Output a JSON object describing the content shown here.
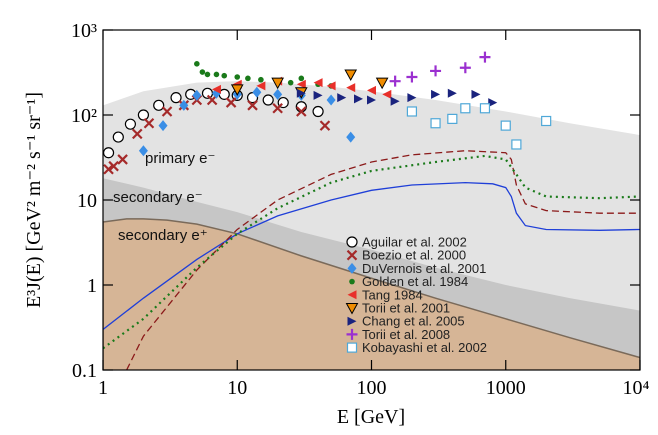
{
  "chart_data": {
    "type": "line",
    "x_label": "E  [GeV]",
    "y_label": "E³J(E)  [GeV² m⁻² s⁻¹ sr⁻¹]",
    "xlim": [
      1,
      10000
    ],
    "ylim": [
      0.1,
      1000
    ],
    "log_x": true,
    "log_y": true,
    "xticks": [
      1,
      10,
      100,
      1000,
      {
        "value": 10000,
        "label": "10⁴"
      }
    ],
    "yticks": [
      0.1,
      1,
      10,
      {
        "value": 100,
        "label": "10²"
      },
      {
        "value": 1000,
        "label": "10³"
      }
    ],
    "legend": "lower-center",
    "areas": [
      {
        "name": "primary e⁻",
        "color": "#e3e3e3",
        "x": [
          1,
          2,
          5,
          10,
          20,
          50,
          100,
          300,
          1000,
          3000,
          10000
        ],
        "values": [
          130,
          190,
          240,
          250,
          240,
          215,
          190,
          150,
          110,
          80,
          58
        ]
      },
      {
        "name": "secondary e⁻",
        "color": "#c6c6c6",
        "x": [
          1,
          2,
          5,
          10,
          30,
          100,
          300,
          1000,
          3000,
          10000
        ],
        "values": [
          18,
          14,
          9.5,
          7.2,
          4.2,
          2.6,
          1.6,
          1.0,
          0.7,
          0.5
        ]
      },
      {
        "name": "secondary e⁺",
        "color": "#d6b596",
        "x": [
          1,
          1.5,
          2,
          3,
          5,
          10,
          30,
          100,
          300,
          1000,
          3000,
          10000
        ],
        "values": [
          5.5,
          6,
          6,
          5.8,
          5.2,
          4,
          2.2,
          1.2,
          0.7,
          0.4,
          0.24,
          0.14
        ]
      }
    ],
    "lines": [
      {
        "color": "#1f3fd8",
        "dash": "none",
        "x": [
          1,
          2,
          5,
          10,
          20,
          50,
          100,
          200,
          500,
          800,
          1000,
          1100,
          1200,
          1400,
          2000,
          5000,
          10000
        ],
        "values": [
          0.3,
          0.7,
          2,
          4,
          6.5,
          10,
          13,
          15,
          16,
          15.5,
          14,
          11,
          7,
          5,
          4.5,
          4.4,
          4.5
        ]
      },
      {
        "color": "#8b1a1a",
        "dash": "7 4",
        "x": [
          1.5,
          2,
          5,
          10,
          20,
          50,
          100,
          200,
          500,
          1000,
          1100,
          1200,
          1400,
          2000,
          5000,
          10000
        ],
        "values": [
          0.1,
          0.25,
          1.5,
          4.5,
          10,
          20,
          28,
          34,
          38,
          36,
          30,
          15,
          9,
          7.5,
          7,
          7
        ]
      },
      {
        "color": "#1a7a1a",
        "dash": "2 4",
        "x": [
          1,
          2,
          5,
          10,
          20,
          50,
          100,
          300,
          700,
          1000,
          1200,
          1400,
          2000,
          5000,
          10000
        ],
        "values": [
          0.18,
          0.4,
          1.6,
          4,
          8,
          16,
          22,
          28,
          33,
          30,
          20,
          14,
          11,
          10.5,
          11
        ]
      }
    ],
    "series": [
      {
        "name": "Aguilar et al. 2002",
        "color": "#000000",
        "marker": "circle-open",
        "x": [
          1.1,
          1.3,
          1.6,
          2,
          2.6,
          3.5,
          4.5,
          6,
          8,
          10,
          13,
          17,
          22,
          30,
          40
        ],
        "values": [
          36,
          55,
          78,
          100,
          130,
          160,
          175,
          180,
          175,
          170,
          160,
          150,
          140,
          125,
          110
        ]
      },
      {
        "name": "Boezio et al. 2000",
        "color": "#a52a2a",
        "marker": "x",
        "x": [
          1.1,
          1.2,
          1.4,
          1.8,
          2.2,
          3,
          4,
          5,
          6.5,
          9,
          13,
          20,
          30,
          45
        ],
        "values": [
          23,
          25,
          30,
          60,
          80,
          110,
          130,
          150,
          150,
          140,
          130,
          120,
          110,
          75
        ]
      },
      {
        "name": "DuVernois et al. 2001",
        "color": "#3a8ee6",
        "marker": "diamond",
        "x": [
          2,
          2.8,
          4,
          5,
          7,
          10,
          14,
          20,
          30,
          50,
          70
        ],
        "values": [
          38,
          75,
          130,
          170,
          180,
          175,
          185,
          175,
          170,
          150,
          55
        ]
      },
      {
        "name": "Golden et al. 1984",
        "color": "#1a7a1a",
        "marker": "dot",
        "x": [
          5,
          5.5,
          6,
          7,
          8,
          10,
          12,
          15,
          20,
          25,
          30,
          40,
          50
        ],
        "values": [
          400,
          320,
          300,
          300,
          290,
          280,
          270,
          260,
          250,
          240,
          270,
          230,
          220
        ]
      },
      {
        "name": "Tang 1984",
        "color": "#e8302a",
        "marker": "triangle-left",
        "x": [
          7,
          10,
          15,
          20,
          30,
          40,
          50,
          70,
          100,
          130
        ],
        "values": [
          200,
          230,
          220,
          250,
          230,
          240,
          220,
          210,
          195,
          175
        ]
      },
      {
        "name": "Torii et al. 2001",
        "color": "#f08c00",
        "marker": "triangle-down",
        "x": [
          10,
          20,
          30,
          70,
          120
        ],
        "values": [
          200,
          240,
          185,
          300,
          240
        ]
      },
      {
        "name": "Chang et al. 2005",
        "color": "#1a237e",
        "marker": "triangle-right",
        "x": [
          30,
          40,
          60,
          80,
          100,
          150,
          200,
          300,
          400,
          600,
          800
        ],
        "values": [
          180,
          170,
          160,
          155,
          150,
          145,
          160,
          175,
          180,
          175,
          140
        ]
      },
      {
        "name": "Torii et al. 2008",
        "color": "#9b30d0",
        "marker": "plus",
        "x": [
          150,
          200,
          300,
          500,
          700
        ],
        "values": [
          250,
          280,
          330,
          360,
          480
        ]
      },
      {
        "name": "Kobayashi et al. 2002",
        "color": "#4fa8d8",
        "marker": "square-open",
        "x": [
          200,
          300,
          400,
          500,
          700,
          1000,
          1200,
          2000
        ],
        "values": [
          110,
          80,
          90,
          120,
          120,
          75,
          45,
          85
        ]
      }
    ]
  }
}
